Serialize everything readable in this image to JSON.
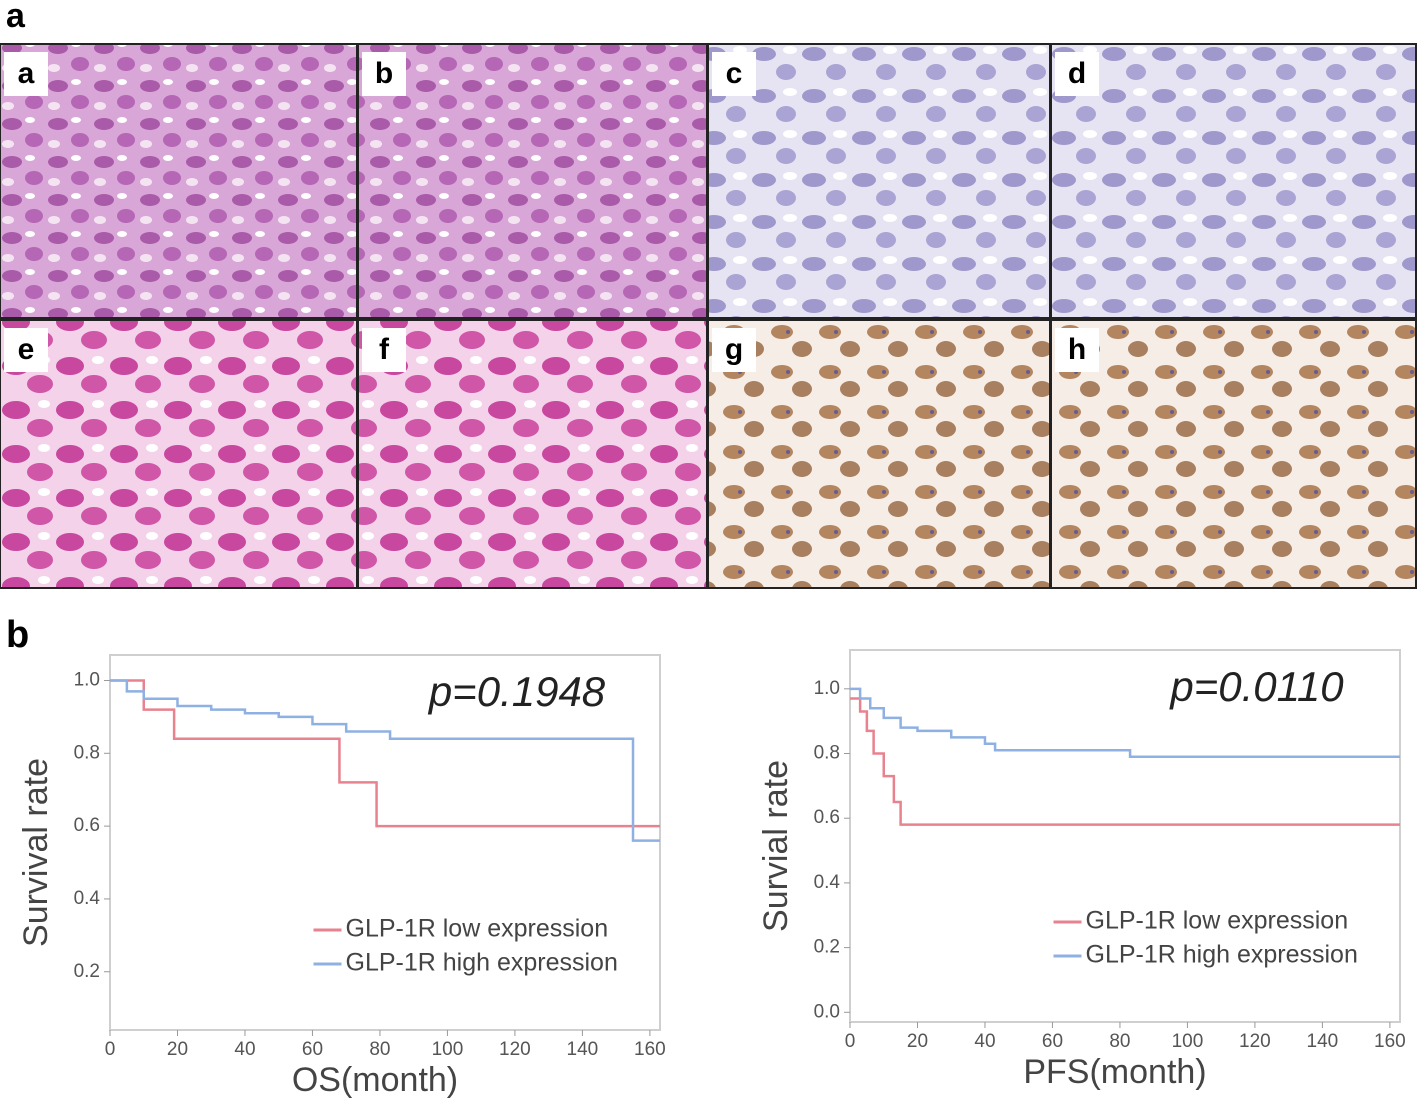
{
  "panel_labels": [
    "a",
    "b"
  ],
  "image_labels": [
    "a",
    "b",
    "c",
    "d",
    "e",
    "f",
    "g",
    "h"
  ],
  "chart_data": [
    {
      "type": "line",
      "step": true,
      "annotation": "p=0.1948",
      "xlabel": "OS(month)",
      "ylabel": "Survival rate",
      "xlim": [
        0,
        163
      ],
      "xticks": [
        0,
        20,
        40,
        60,
        80,
        100,
        120,
        140,
        160
      ],
      "ylim": [
        0.04,
        1.07
      ],
      "yticks": [
        0.2,
        0.4,
        0.6,
        0.8,
        {
          "value": 1,
          "label": "1.0"
        }
      ],
      "legend": "lower right",
      "series": [
        {
          "name": "GLP-1R low expression",
          "color": "#e8828f",
          "x": [
            0,
            10,
            19,
            68,
            79,
            163
          ],
          "values": [
            1,
            0.92,
            0.84,
            0.72,
            0.6,
            0.6
          ]
        },
        {
          "name": "GLP-1R high expression",
          "color": "#8fb0e2",
          "x": [
            0,
            5,
            10,
            20,
            30,
            40,
            50,
            60,
            70,
            83,
            155,
            163
          ],
          "values": [
            1,
            0.97,
            0.95,
            0.93,
            0.92,
            0.91,
            0.9,
            0.88,
            0.86,
            0.84,
            0.56,
            0.56
          ]
        }
      ]
    },
    {
      "type": "line",
      "step": true,
      "annotation": "p=0.0110",
      "xlabel": "PFS(month)",
      "ylabel": "Survial rate",
      "xlim": [
        0,
        163
      ],
      "xticks": [
        0,
        20,
        40,
        60,
        80,
        100,
        120,
        140,
        160
      ],
      "ylim": [
        -0.03,
        1.12
      ],
      "yticks": [
        {
          "value": 0,
          "label": "0.0"
        },
        0.2,
        0.4,
        0.6,
        0.8,
        {
          "value": 1,
          "label": "1.0"
        }
      ],
      "legend": "lower right",
      "series": [
        {
          "name": "GLP-1R low expression",
          "color": "#e8828f",
          "x": [
            0,
            3,
            5,
            7,
            10,
            13,
            15,
            163
          ],
          "values": [
            0.97,
            0.93,
            0.87,
            0.8,
            0.73,
            0.65,
            0.58,
            0.58
          ]
        },
        {
          "name": "GLP-1R high expression",
          "color": "#8fb0e2",
          "x": [
            0,
            3,
            6,
            10,
            15,
            20,
            30,
            40,
            43,
            83,
            163
          ],
          "values": [
            1,
            0.97,
            0.94,
            0.91,
            0.88,
            0.87,
            0.85,
            0.83,
            0.81,
            0.79,
            0.79
          ]
        }
      ]
    }
  ]
}
